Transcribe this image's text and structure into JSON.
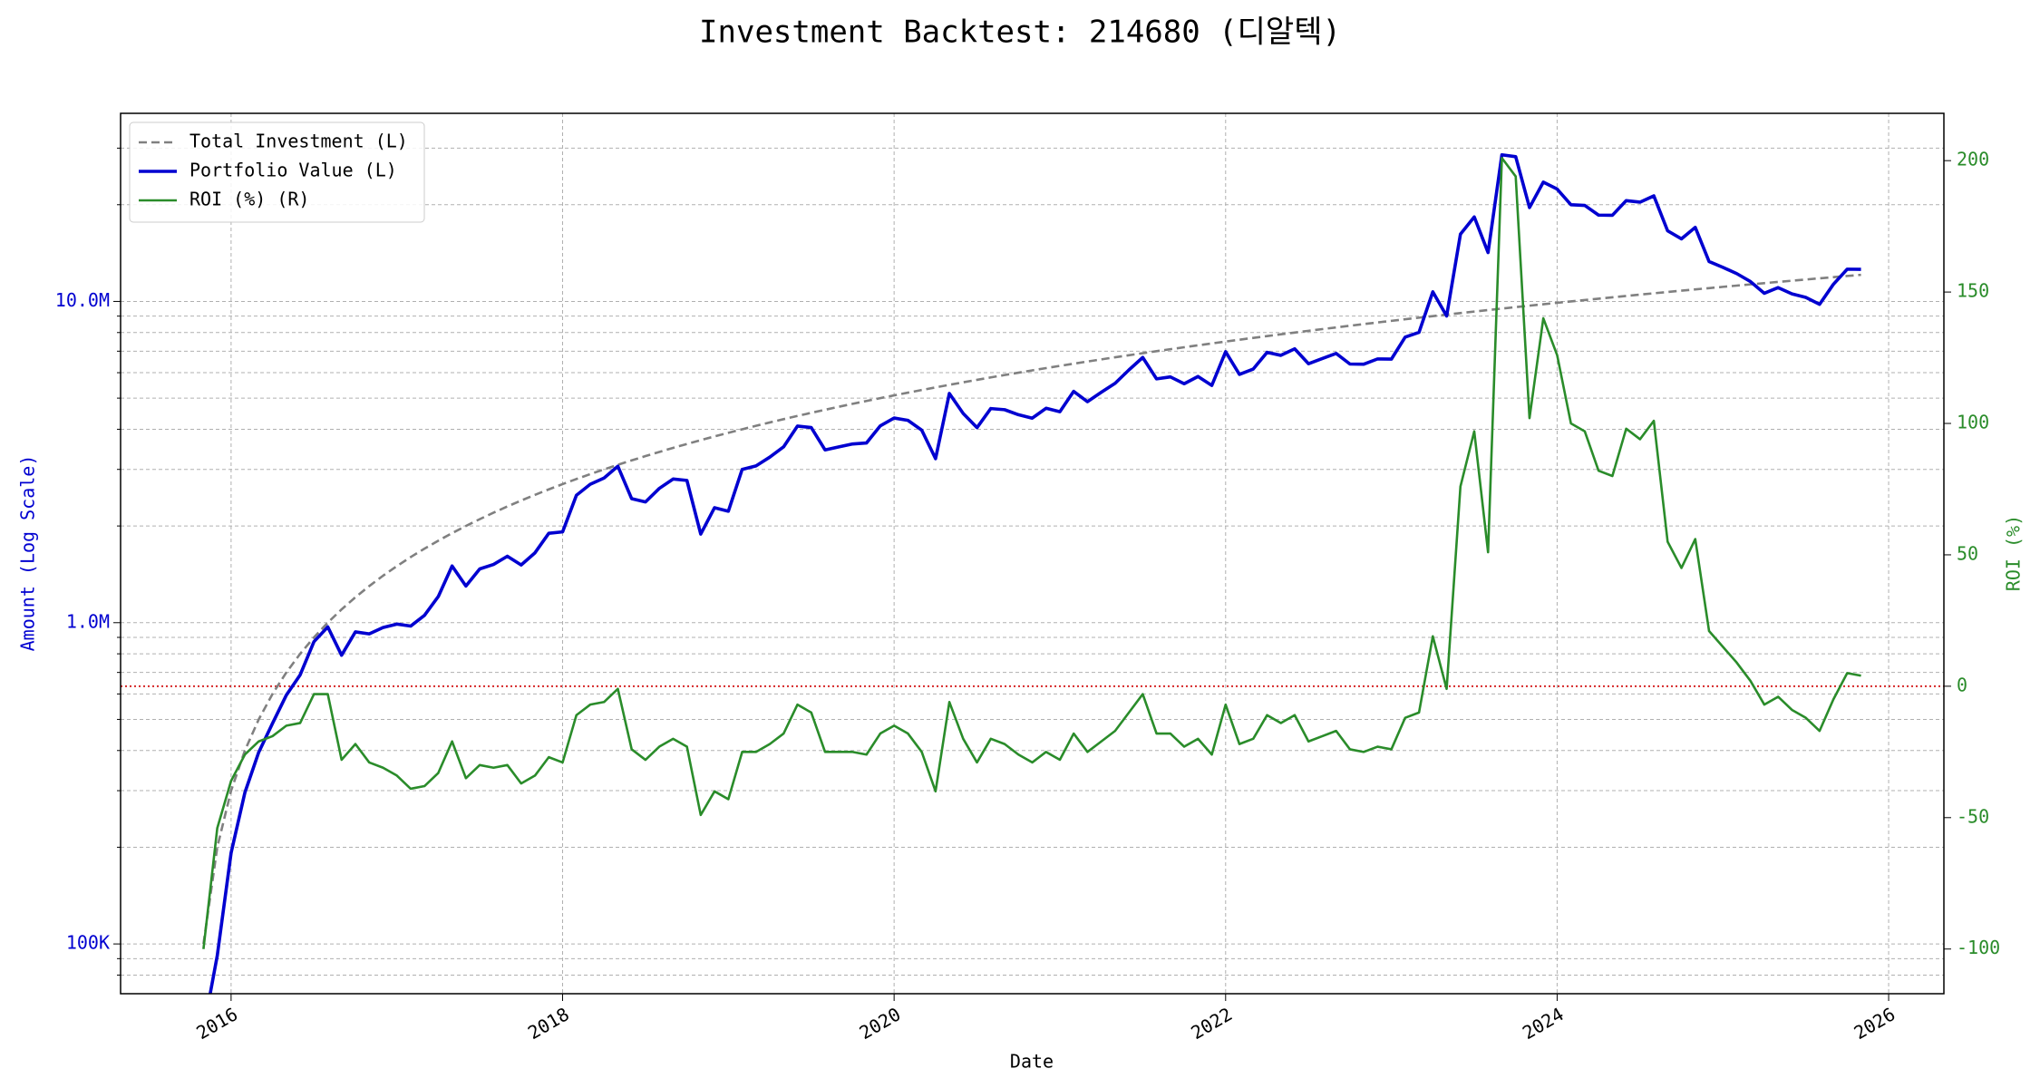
{
  "chart_data": {
    "type": "line",
    "title": "Investment Backtest: 214680 (디알텍)",
    "xlabel": "Date",
    "ylabel": "Amount (Log Scale)",
    "y2label": "ROI (%)",
    "x": [
      "2015-11",
      "2015-12",
      "2016-01",
      "2016-02",
      "2016-03",
      "2016-04",
      "2016-05",
      "2016-06",
      "2016-07",
      "2016-08",
      "2016-09",
      "2016-10",
      "2016-11",
      "2016-12",
      "2017-01",
      "2017-02",
      "2017-03",
      "2017-04",
      "2017-05",
      "2017-06",
      "2017-07",
      "2017-08",
      "2017-09",
      "2017-10",
      "2017-11",
      "2017-12",
      "2018-01",
      "2018-02",
      "2018-03",
      "2018-04",
      "2018-05",
      "2018-06",
      "2018-07",
      "2018-08",
      "2018-09",
      "2018-10",
      "2018-11",
      "2018-12",
      "2019-01",
      "2019-02",
      "2019-03",
      "2019-04",
      "2019-05",
      "2019-06",
      "2019-07",
      "2019-08",
      "2019-09",
      "2019-10",
      "2019-11",
      "2019-12",
      "2020-01",
      "2020-02",
      "2020-03",
      "2020-04",
      "2020-05",
      "2020-06",
      "2020-07",
      "2020-08",
      "2020-09",
      "2020-10",
      "2020-11",
      "2020-12",
      "2021-01",
      "2021-02",
      "2021-03",
      "2021-04",
      "2021-05",
      "2021-06",
      "2021-07",
      "2021-08",
      "2021-09",
      "2021-10",
      "2021-11",
      "2021-12",
      "2022-01",
      "2022-02",
      "2022-03",
      "2022-04",
      "2022-05",
      "2022-06",
      "2022-07",
      "2022-08",
      "2022-09",
      "2022-10",
      "2022-11",
      "2022-12",
      "2023-01",
      "2023-02",
      "2023-03",
      "2023-04",
      "2023-05",
      "2023-06",
      "2023-07",
      "2023-08",
      "2023-09",
      "2023-10",
      "2023-11",
      "2023-12",
      "2024-01",
      "2024-02",
      "2024-03",
      "2024-04",
      "2024-05",
      "2024-06",
      "2024-07",
      "2024-08",
      "2024-09",
      "2024-10",
      "2024-11",
      "2024-12",
      "2025-01",
      "2025-02",
      "2025-03",
      "2025-04",
      "2025-05",
      "2025-06",
      "2025-07",
      "2025-08",
      "2025-09",
      "2025-10",
      "2025-11"
    ],
    "series": [
      {
        "name": "Total Investment (L)",
        "color": "#808080",
        "linestyle": "dashed",
        "axis": "y",
        "values": [
          100000,
          200000,
          300000,
          400000,
          500000,
          600000,
          700000,
          800000,
          900000,
          1000000,
          1100000,
          1200000,
          1300000,
          1400000,
          1500000,
          1600000,
          1700000,
          1800000,
          1900000,
          2000000,
          2100000,
          2200000,
          2300000,
          2400000,
          2500000,
          2600000,
          2700000,
          2800000,
          2900000,
          3000000,
          3100000,
          3200000,
          3300000,
          3400000,
          3500000,
          3600000,
          3700000,
          3800000,
          3900000,
          4000000,
          4100000,
          4200000,
          4300000,
          4400000,
          4500000,
          4600000,
          4700000,
          4800000,
          4900000,
          5000000,
          5100000,
          5200000,
          5300000,
          5400000,
          5500000,
          5600000,
          5700000,
          5800000,
          5900000,
          6000000,
          6100000,
          6200000,
          6300000,
          6400000,
          6500000,
          6600000,
          6700000,
          6800000,
          6900000,
          7000000,
          7100000,
          7200000,
          7300000,
          7400000,
          7500000,
          7600000,
          7700000,
          7800000,
          7900000,
          8000000,
          8100000,
          8200000,
          8300000,
          8400000,
          8500000,
          8600000,
          8700000,
          8800000,
          8900000,
          9000000,
          9100000,
          9200000,
          9300000,
          9400000,
          9500000,
          9600000,
          9700000,
          9800000,
          9900000,
          10000000,
          10100000,
          10200000,
          10300000,
          10400000,
          10500000,
          10600000,
          10700000,
          10800000,
          10900000,
          11000000,
          11100000,
          11200000,
          11300000,
          11400000,
          11500000,
          11600000,
          11700000,
          11800000,
          11900000,
          12000000,
          12100000
        ]
      },
      {
        "name": "Portfolio Value (L)",
        "color": "#0000d0",
        "linestyle": "solid",
        "axis": "y",
        "values": [
          0,
          92000,
          192000,
          296000,
          395000,
          486000,
          595000,
          688000,
          873000,
          970000,
          792000,
          936000,
          923000,
          966000,
          990000,
          976000,
          1054000,
          1206000,
          1501000,
          1300000,
          1470000,
          1518000,
          1610000,
          1512000,
          1650000,
          1898000,
          1917000,
          2492000,
          2697000,
          2820000,
          3069000,
          2432000,
          2376000,
          2618000,
          2800000,
          2772000,
          1887000,
          2280000,
          2223000,
          3000000,
          3075000,
          3276000,
          3526000,
          4092000,
          4050000,
          3450000,
          3525000,
          3600000,
          3626000,
          4100000,
          4335000,
          4264000,
          3975000,
          3240000,
          5170000,
          4480000,
          4047000,
          4640000,
          4602000,
          4440000,
          4331000,
          4650000,
          4536000,
          5248000,
          4875000,
          5214000,
          5561000,
          6120000,
          6693000,
          5740000,
          5822000,
          5544000,
          5840000,
          5476000,
          6975000,
          5928000,
          6160000,
          6942000,
          6794000,
          7120000,
          6399000,
          6642000,
          6889000,
          6384000,
          6375000,
          6622000,
          6612000,
          7744000,
          8010000,
          10710000,
          9009000,
          16192000,
          18321000,
          14194000,
          28595000,
          28224000,
          19594000,
          23520000,
          22374000,
          20000000,
          19897000,
          18564000,
          18540000,
          20592000,
          20370000,
          21306000,
          16585000,
          15660000,
          17004000,
          13310000,
          12765000,
          12208000,
          11526000,
          10602000,
          11040000,
          10556000,
          10296000,
          9794000,
          11305000,
          12600000,
          12584000
        ]
      },
      {
        "name": "ROI (%) (R)",
        "color": "#2a8c2a",
        "linestyle": "solid",
        "axis": "y2",
        "values": [
          -100,
          -54,
          -36,
          -26,
          -21,
          -19,
          -15,
          -14,
          -3,
          -3,
          -28,
          -22,
          -29,
          -31,
          -34,
          -39,
          -38,
          -33,
          -21,
          -35,
          -30,
          -31,
          -30,
          -37,
          -34,
          -27,
          -29,
          -11,
          -7,
          -6,
          -1,
          -24,
          -28,
          -23,
          -20,
          -23,
          -49,
          -40,
          -43,
          -25,
          -25,
          -22,
          -18,
          -7,
          -10,
          -25,
          -25,
          -25,
          -26,
          -18,
          -15,
          -18,
          -25,
          -40,
          -6,
          -20,
          -29,
          -20,
          -22,
          -26,
          -29,
          -25,
          -28,
          -18,
          -25,
          -21,
          -17,
          -10,
          -3,
          -18,
          -18,
          -23,
          -20,
          -26,
          -7,
          -22,
          -20,
          -11,
          -14,
          -11,
          -21,
          -19,
          -17,
          -24,
          -25,
          -23,
          -24,
          -12,
          -10,
          19,
          -1,
          76,
          97,
          51,
          201,
          194,
          102,
          140,
          126,
          100,
          97,
          82,
          80,
          98,
          94,
          101,
          55,
          45,
          56,
          21,
          15,
          9,
          2,
          -7,
          -4,
          -9,
          -12,
          -17,
          -5,
          5,
          4
        ]
      }
    ],
    "xlim": [
      "2015-05",
      "2026-05"
    ],
    "xticks": [
      "2016",
      "2018",
      "2020",
      "2022",
      "2024",
      "2026"
    ],
    "ylog": true,
    "ylim": [
      70000,
      38500000
    ],
    "yticks": [
      {
        "value": 100000,
        "label": "100K"
      },
      {
        "value": 1000000,
        "label": "1.0M"
      },
      {
        "value": 10000000,
        "label": "10.0M"
      }
    ],
    "yminorticks": [
      80000,
      90000,
      200000,
      300000,
      400000,
      500000,
      600000,
      700000,
      800000,
      900000,
      2000000,
      3000000,
      4000000,
      5000000,
      6000000,
      7000000,
      8000000,
      9000000,
      20000000,
      30000000
    ],
    "y2lim": [
      -117,
      218
    ],
    "y2ticks": [
      -100,
      -50,
      0,
      50,
      100,
      150,
      200
    ],
    "reference_line": {
      "axis": "y2",
      "value": 0,
      "color": "#d62728"
    },
    "grid": true,
    "legend": "upper left",
    "ylabel_color": "#0000d0",
    "y2label_color": "#2a8c2a"
  }
}
